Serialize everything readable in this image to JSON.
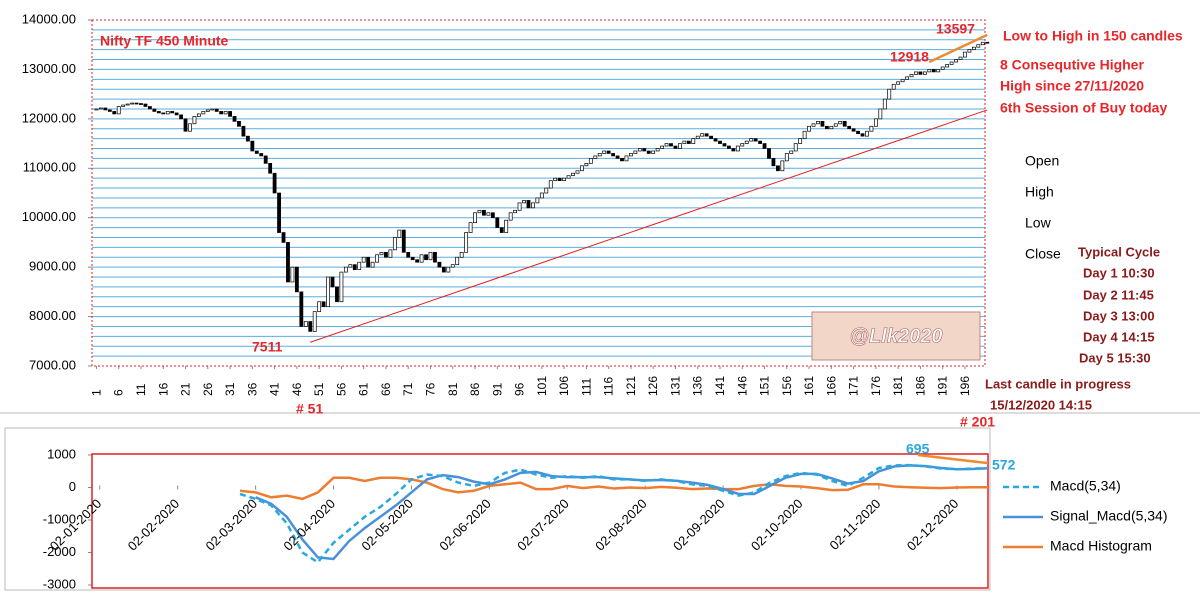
{
  "chart_data": [
    {
      "type": "candlestick",
      "title": "Nifty TF 450 Minute",
      "values": [
        12200,
        12220,
        12180,
        12150,
        12100,
        12250,
        12280,
        12300,
        12320,
        12310,
        12300,
        12250,
        12200,
        12150,
        12120,
        12100,
        12150,
        12120,
        12080,
        12000,
        11750,
        11900,
        12050,
        12100,
        12150,
        12180,
        12200,
        12150,
        12100,
        12150,
        12050,
        11950,
        11850,
        11650,
        11550,
        11350,
        11300,
        11250,
        11100,
        10900,
        10500,
        9700,
        9500,
        8700,
        9000,
        8500,
        7800,
        7900,
        7700,
        8100,
        8300,
        8200,
        8800,
        8600,
        8300,
        8900,
        9000,
        9050,
        8950,
        9100,
        9200,
        9000,
        9100,
        9250,
        9300,
        9200,
        9350,
        9600,
        9750,
        9300,
        9200,
        9150,
        9100,
        9250,
        9150,
        9300,
        9100,
        9000,
        8900,
        9000,
        9050,
        9200,
        9300,
        9700,
        9900,
        10100,
        10150,
        10050,
        10100,
        10000,
        9800,
        9700,
        9950,
        10100,
        10150,
        10300,
        10350,
        10200,
        10300,
        10400,
        10500,
        10600,
        10750,
        10800,
        10750,
        10800,
        10850,
        10900,
        10950,
        11050,
        11100,
        11200,
        11250,
        11300,
        11350,
        11300,
        11250,
        11200,
        11150,
        11250,
        11300,
        11350,
        11400,
        11350,
        11300,
        11350,
        11400,
        11450,
        11500,
        11450,
        11400,
        11500,
        11550,
        11500,
        11600,
        11650,
        11700,
        11650,
        11600,
        11550,
        11500,
        11450,
        11400,
        11350,
        11450,
        11500,
        11550,
        11600,
        11550,
        11500,
        11400,
        11200,
        11050,
        10950,
        11150,
        11300,
        11350,
        11500,
        11600,
        11750,
        11850,
        11900,
        11950,
        11850,
        11800,
        11850,
        11900,
        11950,
        11850,
        11800,
        11750,
        11700,
        11650,
        11750,
        11850,
        12000,
        12200,
        12400,
        12600,
        12700,
        12750,
        12800,
        12850,
        12900,
        12950,
        12900,
        12950,
        13000,
        12950,
        13000,
        13050,
        13100,
        13150,
        13200,
        13250,
        13350,
        13400,
        13450,
        13500,
        13550,
        13540
      ],
      "xlim": [
        0,
        200.5
      ],
      "xticks": [
        1,
        6,
        11,
        16,
        21,
        26,
        31,
        36,
        41,
        46,
        51,
        56,
        61,
        66,
        71,
        76,
        81,
        86,
        91,
        96,
        101,
        106,
        111,
        116,
        121,
        126,
        131,
        136,
        141,
        146,
        151,
        156,
        161,
        166,
        171,
        176,
        181,
        186,
        191,
        196
      ],
      "ylim": [
        7000,
        14000
      ],
      "yticks": [
        {
          "value": 7000,
          "label": "7000.00"
        },
        {
          "value": 8000,
          "label": "8000.00"
        },
        {
          "value": 9000,
          "label": "9000.00"
        },
        {
          "value": 10000,
          "label": "10000.00"
        },
        {
          "value": 11000,
          "label": "11000.00"
        },
        {
          "value": 12000,
          "label": "12000.00"
        },
        {
          "value": 13000,
          "label": "13000.00"
        },
        {
          "value": 14000,
          "label": "14000.00"
        }
      ],
      "gridlines": [
        7200,
        7400,
        7600,
        7800,
        8000,
        8200,
        8400,
        8600,
        8800,
        9000,
        9200,
        9400,
        9600,
        9800,
        10000,
        10200,
        10400,
        10600,
        10800,
        11000,
        11200,
        11400,
        11600,
        11800,
        12000,
        12200,
        12400,
        12600,
        12800,
        13000,
        13200,
        13400,
        13600,
        13800
      ],
      "grid_color": "#5aaee0",
      "up_color": "#ffffff",
      "down_color": "#000000",
      "trendlines": [
        {
          "color": "#e02020",
          "x": [
            49,
            201
          ],
          "y": [
            7480,
            12180
          ]
        },
        {
          "color": "#f08a30",
          "x": [
            188,
            201
          ],
          "y": [
            13150,
            13700
          ]
        }
      ],
      "annotations": [
        "13597",
        "12918",
        "7511",
        "# 51",
        "# 201"
      ],
      "notes": [
        "Low to High in 150 candles",
        "8 Consequtive Higher",
        "High since 27/11/2020",
        "6th Session of Buy today"
      ],
      "ohlc_labels": [
        "Open",
        "High",
        "Low",
        "Close"
      ],
      "cycle_title": "Typical Cycle",
      "cycle": [
        "Day 1 10:30",
        "Day 2  11:45",
        "Day 3  13:00",
        "Day 4  14:15",
        "Day 5 15:30"
      ],
      "watermark": "@Llk2020",
      "footer": [
        "Last candle in progress",
        "15/12/2020 14:15"
      ]
    },
    {
      "type": "line",
      "x": [
        1.8,
        2,
        2.2,
        2.4,
        2.6,
        2.8,
        3,
        3.2,
        3.4,
        3.6,
        3.8,
        4,
        4.2,
        4.4,
        4.6,
        4.8,
        5,
        5.2,
        5.4,
        5.6,
        5.8,
        6,
        6.2,
        6.4,
        6.6,
        6.8,
        7,
        7.2,
        7.4,
        7.6,
        7.8,
        8,
        8.2,
        8.4,
        8.6,
        8.8,
        9,
        9.2,
        9.4,
        9.6,
        9.8,
        10,
        10.2,
        10.4,
        10.6,
        10.8,
        11,
        11.2,
        11.4
      ],
      "series": [
        {
          "name": "Macd(5,34)",
          "color": "#29a8e0",
          "dashed": true,
          "values": [
            -200,
            -350,
            -550,
            -1100,
            -2000,
            -2300,
            -1700,
            -1300,
            -900,
            -600,
            -200,
            250,
            400,
            350,
            150,
            50,
            150,
            450,
            550,
            400,
            300,
            350,
            300,
            350,
            250,
            250,
            200,
            250,
            200,
            100,
            50,
            -100,
            -250,
            -150,
            150,
            350,
            450,
            400,
            200,
            50,
            300,
            600,
            680,
            690,
            650,
            580,
            560,
            580,
            600
          ]
        },
        {
          "name": "Signal_Macd(5,34)",
          "color": "#4a90d9",
          "dashed": false,
          "values": [
            null,
            -300,
            -500,
            -900,
            -1600,
            -2150,
            -2200,
            -1650,
            -1250,
            -900,
            -550,
            -150,
            250,
            380,
            320,
            180,
            100,
            250,
            450,
            480,
            350,
            320,
            320,
            320,
            280,
            250,
            220,
            230,
            210,
            150,
            80,
            -50,
            -200,
            -200,
            50,
            300,
            420,
            420,
            280,
            120,
            200,
            500,
            650,
            680,
            660,
            600,
            560,
            570,
            590
          ]
        },
        {
          "name": "Macd Histogram",
          "color": "#ed7d31",
          "dashed": false,
          "values": [
            -100,
            -150,
            -300,
            -250,
            -350,
            -150,
            300,
            300,
            200,
            300,
            300,
            250,
            150,
            -50,
            -150,
            -100,
            50,
            100,
            150,
            -50,
            -50,
            50,
            -20,
            30,
            -30,
            0,
            -20,
            20,
            -10,
            -50,
            -30,
            -50,
            -50,
            50,
            100,
            50,
            30,
            -20,
            -80,
            -70,
            100,
            100,
            30,
            10,
            -10,
            -20,
            0,
            10,
            10
          ]
        }
      ],
      "xlim": [
        -0.1,
        11.4
      ],
      "xticks": [
        {
          "value": 0,
          "label": "02-01-2020"
        },
        {
          "value": 1,
          "label": "02-02-2020"
        },
        {
          "value": 2,
          "label": "02-03-2020"
        },
        {
          "value": 3,
          "label": "02-04-2020"
        },
        {
          "value": 4,
          "label": "02-05-2020"
        },
        {
          "value": 5,
          "label": "02-06-2020"
        },
        {
          "value": 6,
          "label": "02-07-2020"
        },
        {
          "value": 7,
          "label": "02-08-2020"
        },
        {
          "value": 8,
          "label": "02-09-2020"
        },
        {
          "value": 9,
          "label": "02-10-2020"
        },
        {
          "value": 10,
          "label": "02-11-2020"
        },
        {
          "value": 11,
          "label": "02-12-2020"
        }
      ],
      "ylim": [
        -3000,
        1000
      ],
      "yticks": [
        -3000,
        -2000,
        -1000,
        0,
        1000
      ],
      "trendlines": [
        {
          "color": "#f08a30",
          "x": [
            10.5,
            11.4
          ],
          "y": [
            1000,
            750
          ]
        }
      ],
      "annotations": [
        "695",
        "572"
      ]
    }
  ]
}
